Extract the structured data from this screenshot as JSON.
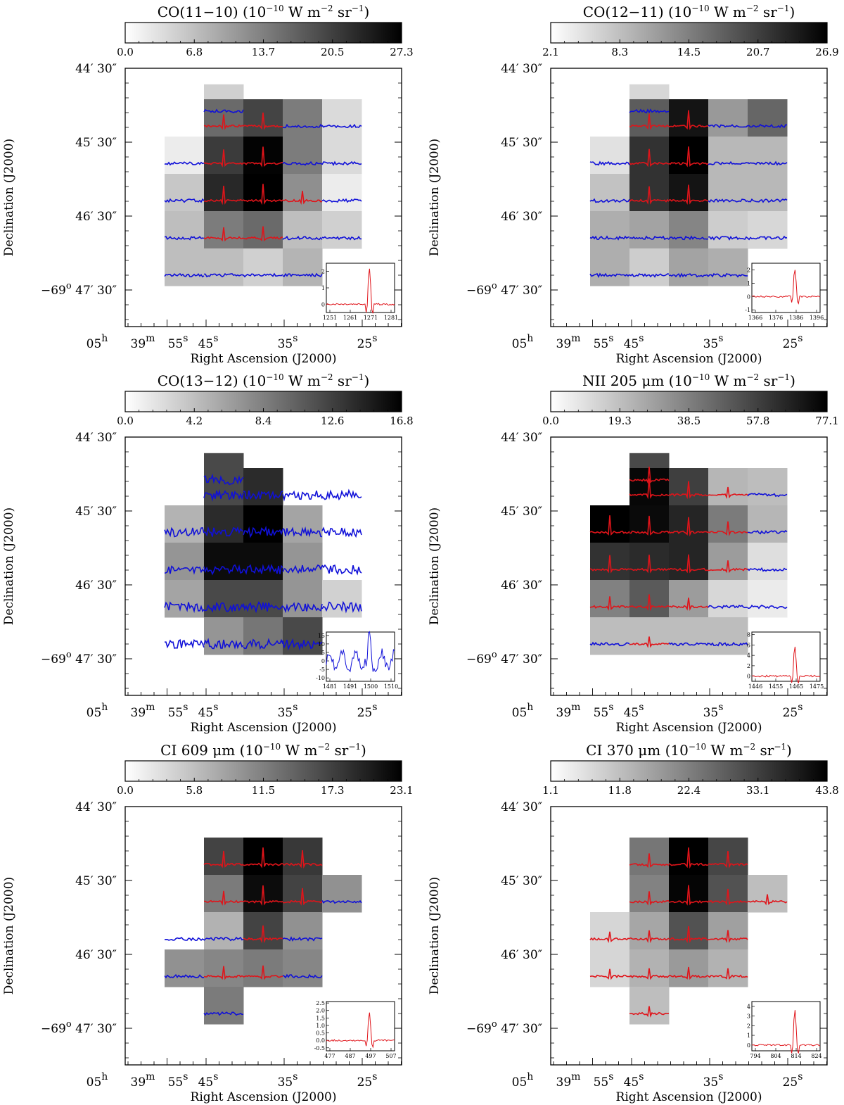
{
  "figure": {
    "xlabel": "Right Ascension (J2000)",
    "ylabel": "Declination (J2000)",
    "unit_suffix": " (10⁻¹⁰ W m⁻² sr⁻¹)",
    "ra_ticks": [
      {
        "h": "05",
        "hs": "h"
      },
      {
        "m": "39",
        "ms": "m"
      },
      {
        "s": "55",
        "ss": "s"
      },
      {
        "s": "45",
        "ss": "s"
      },
      {
        "s": "35",
        "ss": "s"
      },
      {
        "s": "25",
        "ss": "s"
      }
    ],
    "dec_ticks": [
      "44′ 30″",
      "45′ 30″",
      "46′ 30″",
      "47′ 30″"
    ],
    "dec_prefix": "−69",
    "dec_prefix_sup": "o"
  },
  "chart_data": [
    {
      "type": "heatmap",
      "title": "CO(11−10)",
      "colorbar_ticks": [
        "0.0",
        "6.8",
        "13.7",
        "20.5",
        "27.3"
      ],
      "vmin": 0.0,
      "vmax": 27.3,
      "grid": [
        [
          null,
          5,
          null,
          null,
          null
        ],
        [
          null,
          16,
          20,
          14,
          4
        ],
        [
          2,
          21,
          27,
          14,
          4
        ],
        [
          6,
          23,
          27.3,
          12,
          2
        ],
        [
          7,
          14,
          16,
          7,
          5
        ],
        [
          7,
          7,
          5,
          8,
          null
        ]
      ],
      "spectra": [
        [
          null,
          "blue",
          null,
          null,
          null
        ],
        [
          null,
          "red",
          "red",
          "blue",
          "blue"
        ],
        [
          "blue",
          "red",
          "red",
          "blue",
          "blue"
        ],
        [
          "blue",
          "red",
          "red",
          "red",
          "blue"
        ],
        [
          "blue",
          "red",
          "red",
          "blue",
          "blue"
        ],
        [
          "blue",
          "blue",
          "blue",
          "blue",
          null
        ]
      ],
      "inset": {
        "color": "red",
        "xticks": [
          "1251",
          "1261",
          "1271",
          "1281"
        ],
        "yticks": [
          "0",
          "1",
          "2"
        ],
        "ymin": -0.5,
        "ymax": 2.5,
        "peak": 2.2
      }
    },
    {
      "type": "heatmap",
      "title": "CO(12−11)",
      "colorbar_ticks": [
        "2.1",
        "8.3",
        "14.5",
        "20.7",
        "26.9"
      ],
      "vmin": 2.1,
      "vmax": 26.9,
      "grid": [
        [
          null,
          6,
          null,
          null,
          null
        ],
        [
          null,
          18,
          25,
          12,
          17
        ],
        [
          5,
          22,
          26.9,
          9,
          9
        ],
        [
          8,
          22,
          25,
          9,
          9
        ],
        [
          10,
          11,
          14,
          7,
          6
        ],
        [
          10,
          7,
          11,
          10,
          null
        ]
      ],
      "spectra": [
        [
          null,
          "blue",
          null,
          null,
          null
        ],
        [
          null,
          "red",
          "red",
          "blue",
          "blue"
        ],
        [
          "blue",
          "red",
          "red",
          "blue",
          "blue"
        ],
        [
          "blue",
          "red",
          "red",
          "blue",
          "blue"
        ],
        [
          "blue",
          "blue",
          "blue",
          "blue",
          "blue"
        ],
        [
          "blue",
          "blue",
          "blue",
          "blue",
          null
        ]
      ],
      "inset": {
        "color": "red",
        "xticks": [
          "1366",
          "1376",
          "1386",
          "1396"
        ],
        "yticks": [
          "-1",
          "0",
          "1",
          "2"
        ],
        "ymin": -1.2,
        "ymax": 2.5,
        "peak": 2.1
      }
    },
    {
      "type": "heatmap",
      "title": "CO(13−12)",
      "colorbar_ticks": [
        "0.0",
        "4.2",
        "8.4",
        "12.6",
        "16.8"
      ],
      "vmin": 0.0,
      "vmax": 16.8,
      "grid": [
        [
          null,
          12,
          null,
          null,
          null
        ],
        [
          null,
          12,
          14,
          null,
          null
        ],
        [
          5,
          14,
          16.8,
          6,
          null
        ],
        [
          7,
          16,
          16,
          7,
          null
        ],
        [
          6,
          12,
          12,
          7,
          3
        ],
        [
          null,
          7,
          9,
          12,
          null
        ]
      ],
      "spectra": [
        [
          null,
          "blue",
          null,
          null,
          null
        ],
        [
          null,
          "blue",
          "blue",
          "blue",
          "blue"
        ],
        [
          "blue",
          "blue",
          "blue",
          "blue",
          "blue"
        ],
        [
          "blue",
          "blue",
          "blue",
          "blue",
          "blue"
        ],
        [
          "blue",
          "blue",
          "blue",
          "blue",
          "blue"
        ],
        [
          "blue",
          "blue",
          "blue",
          "blue",
          null
        ]
      ],
      "inset": {
        "color": "blue",
        "xticks": [
          "1481",
          "1491",
          "1500",
          "1510"
        ],
        "yticks": [
          "-10",
          "-5",
          "0",
          "5",
          "10",
          "15"
        ],
        "ymin": -12,
        "ymax": 17,
        "peak": 13
      }
    },
    {
      "type": "heatmap",
      "title": "NII 205 μm",
      "colorbar_ticks": [
        "0.0",
        "19.3",
        "38.5",
        "57.8",
        "77.1"
      ],
      "vmin": 0.0,
      "vmax": 77.1,
      "grid": [
        [
          null,
          55,
          null,
          null,
          null
        ],
        [
          null,
          75,
          58,
          22,
          20
        ],
        [
          77.1,
          74,
          66,
          40,
          22
        ],
        [
          62,
          64,
          66,
          30,
          10
        ],
        [
          38,
          50,
          30,
          12,
          6
        ],
        [
          20,
          20,
          20,
          20,
          null
        ]
      ],
      "spectra": [
        [
          null,
          "red",
          null,
          null,
          null
        ],
        [
          null,
          "red",
          "red",
          "red",
          "blue"
        ],
        [
          "red",
          "red",
          "red",
          "red",
          "blue"
        ],
        [
          "red",
          "red",
          "red",
          "red",
          "blue"
        ],
        [
          "red",
          "red",
          "red",
          "blue",
          "blue"
        ],
        [
          "blue",
          "red",
          "blue",
          "blue",
          null
        ]
      ],
      "inset": {
        "color": "red",
        "xticks": [
          "1446",
          "1455",
          "1465",
          "1475"
        ],
        "yticks": [
          "0",
          "2",
          "4",
          "6",
          "8"
        ],
        "ymin": -1,
        "ymax": 8.5,
        "peak": 5.6
      }
    },
    {
      "type": "heatmap",
      "title": "CI 609 μm",
      "colorbar_ticks": [
        "0.0",
        "5.8",
        "11.5",
        "17.3",
        "23.1"
      ],
      "vmin": 0.0,
      "vmax": 23.1,
      "grid": [
        [
          null,
          17,
          23.1,
          18,
          null
        ],
        [
          null,
          12,
          22,
          17,
          10
        ],
        [
          null,
          7,
          17,
          10,
          null
        ],
        [
          10,
          11,
          12,
          11,
          null
        ],
        [
          null,
          12,
          null,
          null,
          null
        ]
      ],
      "spectra": [
        [
          null,
          "red",
          "red",
          "red",
          null
        ],
        [
          null,
          "red",
          "red",
          "red",
          "blue"
        ],
        [
          "blue",
          "blue",
          "red",
          "blue",
          null
        ],
        [
          "blue",
          "red",
          "red",
          "blue",
          null
        ],
        [
          null,
          "blue",
          null,
          null,
          null
        ]
      ],
      "inset": {
        "color": "red",
        "xticks": [
          "477",
          "487",
          "497",
          "507"
        ],
        "yticks": [
          "-0.5",
          "0.0",
          "0.5",
          "1.0",
          "1.5",
          "2.0",
          "2.5"
        ],
        "ymin": -0.7,
        "ymax": 2.6,
        "peak": 1.9
      }
    },
    {
      "type": "heatmap",
      "title": "CI 370 μm",
      "colorbar_ticks": [
        "1.1",
        "11.8",
        "22.4",
        "33.1",
        "43.8"
      ],
      "vmin": 1.1,
      "vmax": 43.8,
      "grid": [
        [
          null,
          24,
          43.8,
          32,
          null
        ],
        [
          null,
          22,
          43,
          30,
          12
        ],
        [
          8,
          16,
          30,
          17,
          null
        ],
        [
          8,
          14,
          18,
          14,
          null
        ],
        [
          null,
          12,
          null,
          null,
          null
        ]
      ],
      "spectra": [
        [
          null,
          "red",
          "red",
          "red",
          null
        ],
        [
          null,
          "red",
          "red",
          "red",
          "red"
        ],
        [
          "red",
          "red",
          "red",
          "red",
          null
        ],
        [
          "red",
          "red",
          "red",
          "red",
          null
        ],
        [
          null,
          "red",
          null,
          null,
          null
        ]
      ],
      "inset": {
        "color": "red",
        "xticks": [
          "794",
          "804",
          "814",
          "824"
        ],
        "yticks": [
          "0",
          "1",
          "2",
          "3",
          "4"
        ],
        "ymin": -0.6,
        "ymax": 4.5,
        "peak": 3.6
      }
    }
  ]
}
